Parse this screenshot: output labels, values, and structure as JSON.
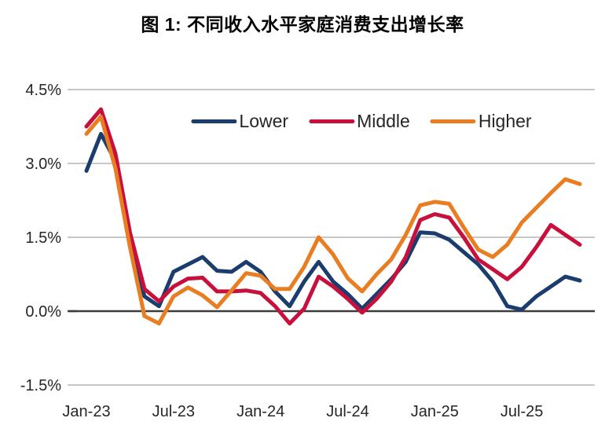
{
  "title": "图 1: 不同收入水平家庭消费支出增长率",
  "chart_data": {
    "type": "line",
    "title": "图 1: 不同收入水平家庭消费支出增长率",
    "xlabel": "",
    "ylabel": "",
    "ylim": [
      -1.5,
      4.5
    ],
    "grid": "horizontal",
    "grid_color": "#c8c8c8",
    "zero_line_color": "#3c3c3c",
    "legend_position": "top-center-inside",
    "x": [
      "Jan-23",
      "Feb-23",
      "Mar-23",
      "Apr-23",
      "May-23",
      "Jun-23",
      "Jul-23",
      "Aug-23",
      "Sep-23",
      "Oct-23",
      "Nov-23",
      "Dec-23",
      "Jan-24",
      "Feb-24",
      "Mar-24",
      "Apr-24",
      "May-24",
      "Jun-24",
      "Jul-24",
      "Aug-24",
      "Sep-24",
      "Oct-24",
      "Nov-24",
      "Dec-24",
      "Jan-25",
      "Feb-25",
      "Mar-25",
      "Apr-25",
      "May-25",
      "Jun-25",
      "Jul-25",
      "Aug-25",
      "Sep-25",
      "Oct-25",
      "Nov-25"
    ],
    "x_tick_labels": [
      "Jan-23",
      "Jul-23",
      "Jan-24",
      "Jul-24",
      "Jan-25",
      "Jul-25"
    ],
    "x_tick_indices": [
      0,
      6,
      12,
      18,
      24,
      30
    ],
    "y_ticks": [
      {
        "label": "4.5%",
        "value": 4.5
      },
      {
        "label": "3.0%",
        "value": 3.0
      },
      {
        "label": "1.5%",
        "value": 1.5
      },
      {
        "label": "0.0%",
        "value": 0.0
      },
      {
        "label": "-1.5%",
        "value": -1.5
      }
    ],
    "series": [
      {
        "name": "Lower",
        "color": "#1b3d6d",
        "values": [
          2.85,
          3.6,
          3.05,
          1.4,
          0.3,
          0.1,
          0.8,
          0.95,
          1.1,
          0.82,
          0.8,
          1.0,
          0.8,
          0.4,
          0.1,
          0.6,
          1.0,
          0.6,
          0.35,
          0.05,
          0.35,
          0.65,
          1.0,
          1.6,
          1.58,
          1.45,
          1.2,
          0.95,
          0.6,
          0.1,
          0.03,
          0.3,
          0.5,
          0.7,
          0.62
        ]
      },
      {
        "name": "Middle",
        "color": "#c8103c",
        "values": [
          3.75,
          4.1,
          3.2,
          1.6,
          0.45,
          0.2,
          0.5,
          0.66,
          0.68,
          0.4,
          0.4,
          0.42,
          0.37,
          0.1,
          -0.25,
          0.05,
          0.7,
          0.5,
          0.25,
          -0.03,
          0.25,
          0.6,
          1.1,
          1.85,
          1.97,
          1.9,
          1.5,
          1.05,
          0.85,
          0.65,
          0.9,
          1.3,
          1.75,
          1.55,
          1.35
        ]
      },
      {
        "name": "Higher",
        "color": "#e87d22",
        "values": [
          3.6,
          3.95,
          2.9,
          1.3,
          -0.1,
          -0.25,
          0.3,
          0.48,
          0.32,
          0.08,
          0.42,
          0.77,
          0.72,
          0.45,
          0.45,
          0.9,
          1.5,
          1.15,
          0.67,
          0.4,
          0.75,
          1.05,
          1.55,
          2.15,
          2.22,
          2.18,
          1.7,
          1.25,
          1.1,
          1.35,
          1.8,
          2.1,
          2.4,
          2.68,
          2.58
        ]
      }
    ]
  }
}
